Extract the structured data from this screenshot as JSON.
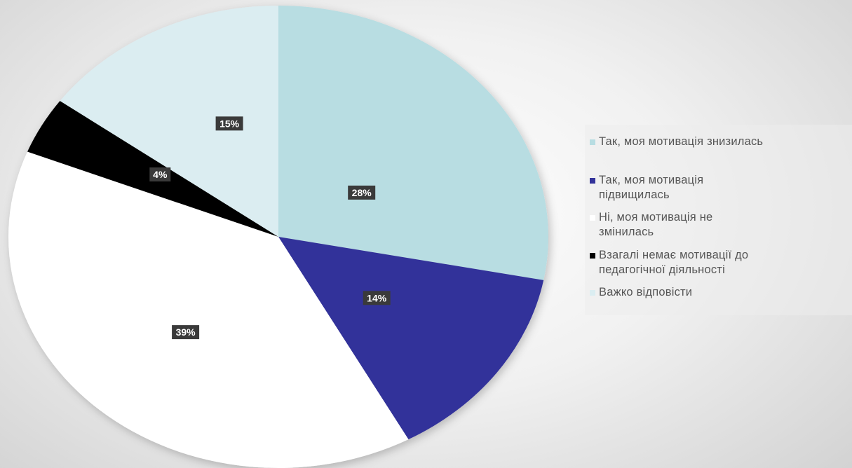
{
  "chart_data": {
    "type": "pie",
    "slices": [
      {
        "label": "Так, моя мотивація знизилась",
        "value": 28,
        "value_label": "28%",
        "color": "#b8dde2"
      },
      {
        "label": "Так, моя мотивація підвищилась",
        "value": 14,
        "value_label": "14%",
        "color": "#33339a"
      },
      {
        "label": "Ні, моя мотивація не змінилась",
        "value": 39,
        "value_label": "39%",
        "color": "#ffffff"
      },
      {
        "label": "Взагалі немає мотивації до педагогічної діяльності",
        "value": 4,
        "value_label": "4%",
        "color": "#000000"
      },
      {
        "label": "Важко відповісти",
        "value": 15,
        "value_label": "15%",
        "color": "#dbedf1"
      }
    ],
    "start_angle_deg": 0,
    "direction": "clockwise",
    "legend_position": "right",
    "data_label_style": "dark box, white bold text"
  },
  "legend": {
    "items": [
      {
        "lines": [
          "Так, моя мотивація знизилась"
        ],
        "color": "#b8dde2"
      },
      {
        "lines": [
          "Так, моя мотивація",
          "підвищилась"
        ],
        "color": "#33339a"
      },
      {
        "lines": [
          "Ні, моя мотивація не",
          "змінилась"
        ],
        "color": "#ffffff"
      },
      {
        "lines": [
          "Взагалі немає мотивації до",
          "педагогічної діяльності"
        ],
        "color": "#000000"
      },
      {
        "lines": [
          "Важко відповісти"
        ],
        "color": "#dbedf1"
      }
    ]
  }
}
